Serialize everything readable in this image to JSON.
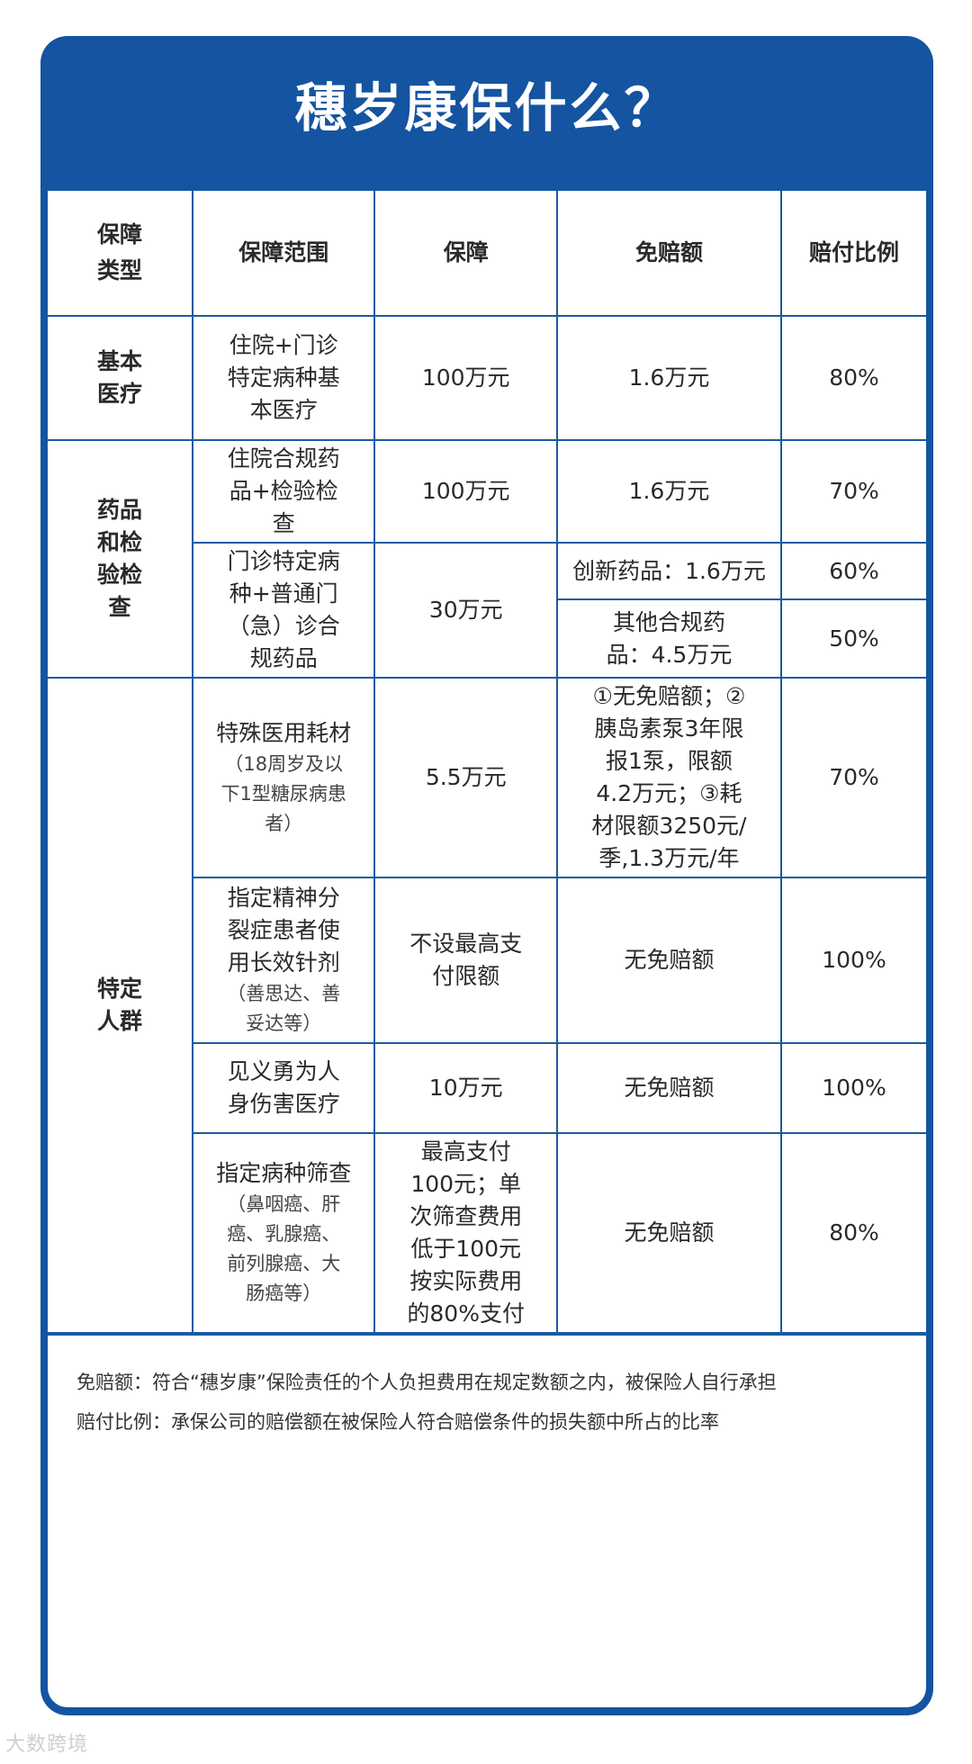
{
  "title": "穗岁康保什么？",
  "table": {
    "headers": [
      "保障类型",
      "保障范围",
      "保障",
      "免赔额",
      "赔付比例"
    ],
    "basic": {
      "type": "基本医疗",
      "scope": "住院+门诊特定病种基本医疗",
      "coverage": "100万元",
      "deductible": "1.6万元",
      "ratio": "80%"
    },
    "drugs": {
      "type": "药品和检验检查",
      "row1": {
        "scope": "住院合规药品+检验检查",
        "coverage": "100万元",
        "deductible": "1.6万元",
        "ratio": "70%"
      },
      "row2": {
        "scope": "门诊特定病种+普通门（急）诊合规药品",
        "coverage": "30万元",
        "deductible_a": "创新药品：1.6万元",
        "ratio_a": "60%",
        "deductible_b": "其他合规药品：4.5万元",
        "ratio_b": "50%"
      }
    },
    "special": {
      "type": "特定人群",
      "rows": [
        {
          "scope": "特殊医用耗材",
          "scope_note": "（18周岁及以下1型糖尿病患者）",
          "coverage": "5.5万元",
          "deductible": "①无免赔额；②胰岛素泵3年限报1泵，限额4.2万元；③耗材限额3250元/季,1.3万元/年",
          "ratio": "70%"
        },
        {
          "scope": "指定精神分裂症患者使用长效针剂",
          "scope_note": "（善思达、善妥达等）",
          "coverage": "不设最高支付限额",
          "deductible": "无免赔额",
          "ratio": "100%"
        },
        {
          "scope": "见义勇为人身伤害医疗",
          "scope_note": "",
          "coverage": "10万元",
          "deductible": "无免赔额",
          "ratio": "100%"
        },
        {
          "scope": "指定病种筛查",
          "scope_note": "（鼻咽癌、肝癌、乳腺癌、前列腺癌、大肠癌等）",
          "coverage": "最高支付100元；单次筛查费用低于100元按实际费用的80%支付",
          "deductible": "无免赔额",
          "ratio": "80%"
        }
      ]
    }
  },
  "notes": [
    "免赔额：符合“穗岁康”保险责任的个人负担费用在规定数额之内，被保险人自行承担",
    "赔付比例：承保公司的赔偿额在被保险人符合赔偿条件的损失额中所占的比率"
  ],
  "watermark": "大数跨境"
}
